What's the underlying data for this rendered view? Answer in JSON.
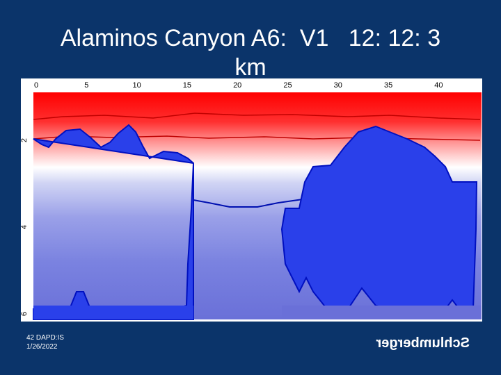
{
  "slide": {
    "title_lines": [
      "Alaminos Canyon A6:  V1   12: 12: 3",
      "km"
    ],
    "plot": {
      "top_labels": [
        "0",
        "5",
        "10",
        "15",
        "20",
        "25",
        "30",
        "35",
        "40"
      ],
      "left_labels": [
        "2",
        "4",
        "6"
      ]
    },
    "footer": {
      "line1": "42  DAPD:IS",
      "line2": "1/26/2022"
    },
    "logo": "Schlumberger"
  }
}
